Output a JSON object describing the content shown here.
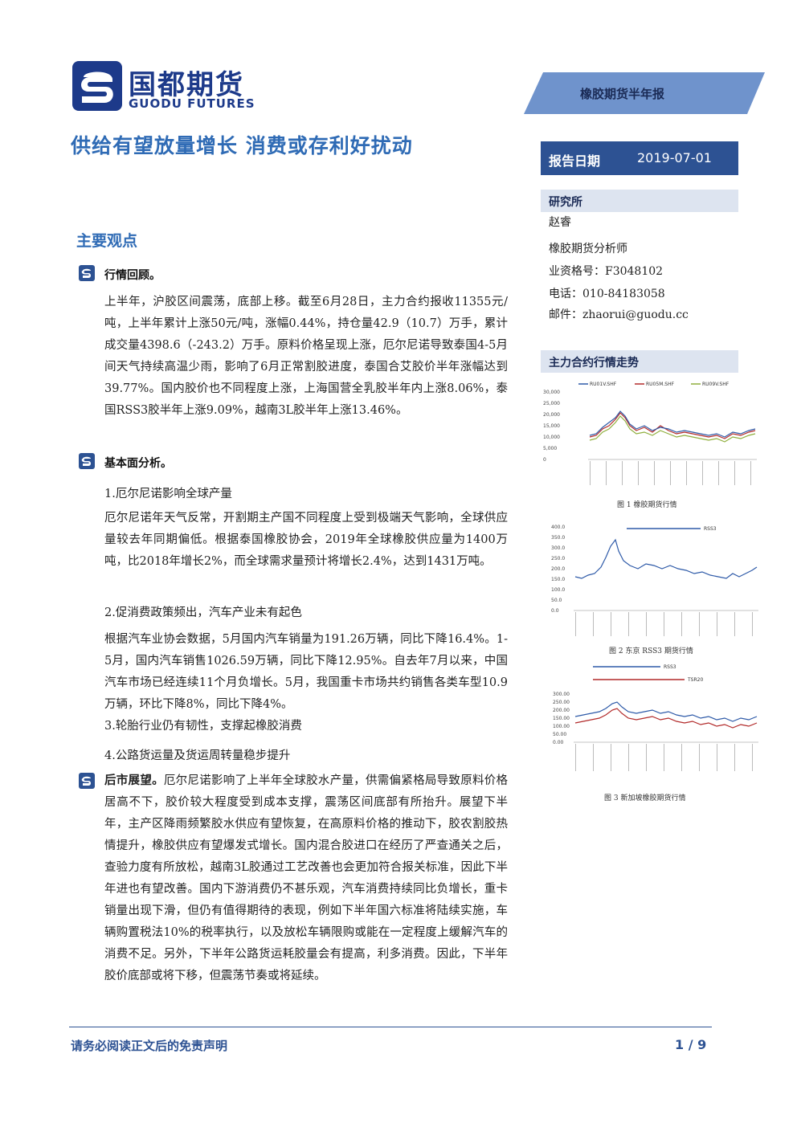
{
  "header": {
    "logo_cn": "国都期货",
    "logo_en": "GUODU FUTURES",
    "report_type": "橡胶期货半年报",
    "title": "供给有望放量增长 消费或存利好扰动",
    "date_label": "报告日期",
    "date_value": "2019-07-01"
  },
  "main": {
    "section_title": "主要观点",
    "market_review": {
      "title": "行情回顾。",
      "body": "上半年，沪胶区间震荡，底部上移。截至6月28日，主力合约报收11355元/吨，上半年累计上涨50元/吨，涨幅0.44%，持仓量42.9（10.7）万手，累计成交量4398.6（-243.2）万手。原料价格呈现上涨，厄尔尼诺导致泰国4-5月间天气持续高温少雨，影响了6月正常割胶进度，泰国合艾胶价半年涨幅达到39.77%。国内胶价也不同程度上涨，上海国营全乳胶半年内上涨8.06%，泰国RSS3胶半年上涨9.09%，越南3L胶半年上涨13.46%。"
    },
    "fundamentals": {
      "title": "基本面分析。",
      "item1_title": "1.厄尔尼诺影响全球产量",
      "item1_body": "厄尔尼诺年天气反常，开割期主产国不同程度上受到极端天气影响，全球供应量较去年同期偏低。根据泰国橡胶协会，2019年全球橡胶供应量为1400万吨，比2018年增长2%，而全球需求量预计将增长2.4%，达到1431万吨。",
      "item2_title": "2.促消费政策频出，汽车产业未有起色",
      "item2_body": "根据汽车业协会数据，5月国内汽车销量为191.26万辆，同比下降16.4%。1-5月，国内汽车销售1026.59万辆，同比下降12.95%。自去年7月以来，中国汽车市场已经连续11个月负增长。5月，我国重卡市场共约销售各类车型10.9万辆，环比下降8%，同比下降4%。",
      "item3_title": "3.轮胎行业仍有韧性，支撑起橡胶消费",
      "item4_title": "4.公路货运量及货运周转量稳步提升"
    },
    "outlook": {
      "title": "后市展望。",
      "body": "厄尔尼诺影响了上半年全球胶水产量，供需偏紧格局导致原料价格居高不下，胶价较大程度受到成本支撑，震荡区间底部有所抬升。展望下半年，主产区降雨频繁胶水供应有望恢复，在高原料价格的推动下，胶农割胶热情提升，橡胶供应有望爆发式增长。国内混合胶进口在经历了严查通关之后，查验力度有所放松，越南3L胶通过工艺改善也会更加符合报关标准，因此下半年进也有望改善。国内下游消费仍不甚乐观，汽车消费持续同比负增长，重卡销量出现下滑，但仍有值得期待的表现，例如下半年国六标准将陆续实施，车辆购置税法10%的税率执行，以及放松车辆限购或能在一定程度上缓解汽车的消费不足。另外，下半年公路货运耗胶量会有提高，利多消费。因此，下半年胶价底部或将下移，但震荡节奏或将延续。"
    }
  },
  "sidebar": {
    "research_label": "研究所",
    "analyst_name": "赵睿",
    "analyst_title": "橡胶期货分析师",
    "license": "业资格号：F3048102",
    "phone": "电话：010-84183058",
    "email": "邮件：zhaorui@guodu.cc",
    "chart_section": "主力合约行情走势",
    "fig1_caption": "图 1 橡胶期货行情",
    "fig2_caption": "图 2 东京 RSS3 期货行情",
    "fig3_caption": "图 3 新加坡橡胶期货行情"
  },
  "chart_data": [
    {
      "type": "line",
      "title": "",
      "legend_position": "top",
      "series": [
        {
          "name": "RU01V.SHF",
          "color": "#2e5aa8"
        },
        {
          "name": "RU05M.SHF",
          "color": "#b22a2a"
        },
        {
          "name": "RU09V.SHF",
          "color": "#8fae3c"
        }
      ],
      "y_ticks": [
        "30,000",
        "25,000",
        "20,000",
        "15,000",
        "10,000",
        "5,000",
        "0"
      ],
      "ylim": [
        0,
        30000
      ]
    },
    {
      "type": "line",
      "title": "",
      "legend_position": "top",
      "series": [
        {
          "name": "RSS3",
          "color": "#2e5aa8"
        }
      ],
      "y_ticks": [
        "400.0",
        "350.0",
        "300.0",
        "250.0",
        "200.0",
        "150.0",
        "100.0",
        "50.0",
        "0.0"
      ],
      "ylim": [
        0,
        400
      ]
    },
    {
      "type": "line",
      "title": "",
      "legend_position": "top",
      "series": [
        {
          "name": "RSS3",
          "color": "#2e5aa8"
        },
        {
          "name": "TSR20",
          "color": "#b22a2a"
        }
      ],
      "y_ticks": [
        "300.00",
        "250.00",
        "200.00",
        "150.00",
        "100.00",
        "50.00",
        "0.00"
      ],
      "ylim": [
        0,
        300
      ]
    }
  ],
  "footer": {
    "disclaimer": "请务必阅读正文后的免责声明",
    "page": "1 / 9"
  },
  "colors": {
    "brand_blue": "#2d5293",
    "title_blue": "#2f6bb5",
    "banner_blue": "#6f93cc"
  }
}
